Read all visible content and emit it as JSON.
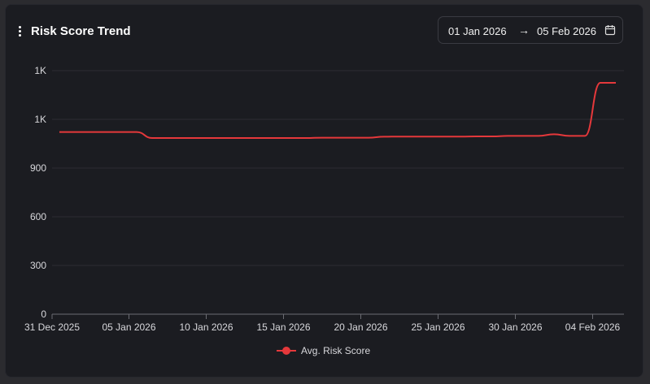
{
  "header": {
    "title": "Risk Score Trend",
    "date_from": "01 Jan 2026",
    "arrow": "→",
    "date_to": "05 Feb 2026"
  },
  "colors": {
    "series": "#e5383b",
    "grid": "#2c2d33",
    "axis": "#6b6c73"
  },
  "chart_data": {
    "type": "line",
    "title": "Risk Score Trend",
    "xlabel": "",
    "ylabel": "",
    "y_ticks": [
      {
        "value": 0,
        "label": "0"
      },
      {
        "value": 300,
        "label": "300"
      },
      {
        "value": 600,
        "label": "600"
      },
      {
        "value": 900,
        "label": "900"
      },
      {
        "value": 1200,
        "label": "1K"
      },
      {
        "value": 1500,
        "label": "1K"
      }
    ],
    "x_ticks": [
      "31 Dec 2025",
      "05 Jan 2026",
      "10 Jan 2026",
      "15 Jan 2026",
      "20 Jan 2026",
      "25 Jan 2026",
      "30 Jan 2026",
      "04 Feb 2026"
    ],
    "ylim": [
      0,
      1500
    ],
    "grid": true,
    "legend_position": "bottom-center",
    "series": [
      {
        "name": "Avg. Risk Score",
        "x": [
          "2025-12-31",
          "2026-01-01",
          "2026-01-02",
          "2026-01-03",
          "2026-01-04",
          "2026-01-05",
          "2026-01-06",
          "2026-01-07",
          "2026-01-08",
          "2026-01-09",
          "2026-01-10",
          "2026-01-11",
          "2026-01-12",
          "2026-01-13",
          "2026-01-14",
          "2026-01-15",
          "2026-01-16",
          "2026-01-17",
          "2026-01-18",
          "2026-01-19",
          "2026-01-20",
          "2026-01-21",
          "2026-01-22",
          "2026-01-23",
          "2026-01-24",
          "2026-01-25",
          "2026-01-26",
          "2026-01-27",
          "2026-01-28",
          "2026-01-29",
          "2026-01-30",
          "2026-01-31",
          "2026-02-01",
          "2026-02-02",
          "2026-02-03",
          "2026-02-04",
          "2026-02-05"
        ],
        "values": [
          1122,
          1122,
          1122,
          1122,
          1122,
          1122,
          1085,
          1085,
          1085,
          1085,
          1085,
          1085,
          1085,
          1085,
          1085,
          1085,
          1085,
          1087,
          1087,
          1087,
          1087,
          1093,
          1094,
          1094,
          1094,
          1094,
          1094,
          1095,
          1095,
          1098,
          1098,
          1098,
          1108,
          1098,
          1098,
          1425,
          1425
        ]
      }
    ]
  }
}
